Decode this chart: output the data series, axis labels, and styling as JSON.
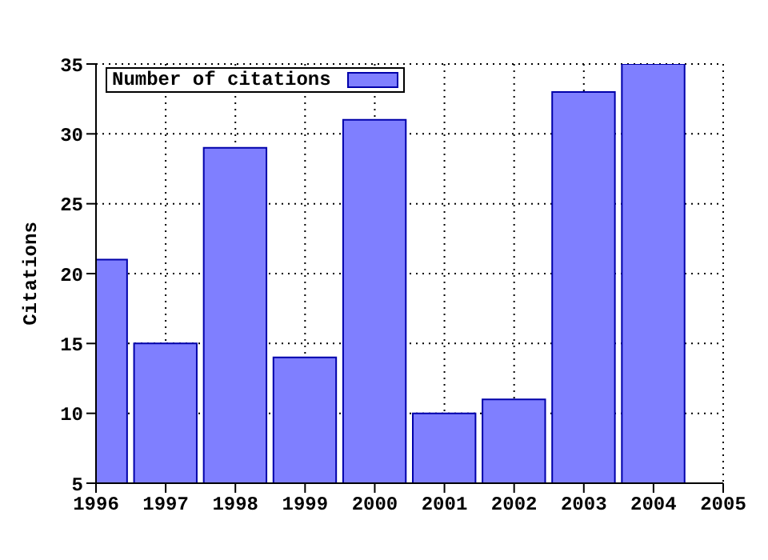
{
  "chart_data": {
    "type": "bar",
    "ylabel": "Citations",
    "x": [
      1996,
      1997,
      1998,
      1999,
      2000,
      2001,
      2002,
      2003,
      2004
    ],
    "series": [
      {
        "name": "Number of citations",
        "color": "#7f7fff",
        "values": [
          21,
          15,
          29,
          14,
          31,
          10,
          11,
          33,
          35
        ]
      }
    ],
    "xlim": [
      1996,
      2005
    ],
    "xticks": [
      1996,
      1997,
      1998,
      1999,
      2000,
      2001,
      2002,
      2003,
      2004,
      2005
    ],
    "ylim": [
      5,
      35
    ],
    "yticks": [
      5,
      10,
      15,
      20,
      25,
      30,
      35
    ],
    "grid": true,
    "legend": "top left"
  }
}
